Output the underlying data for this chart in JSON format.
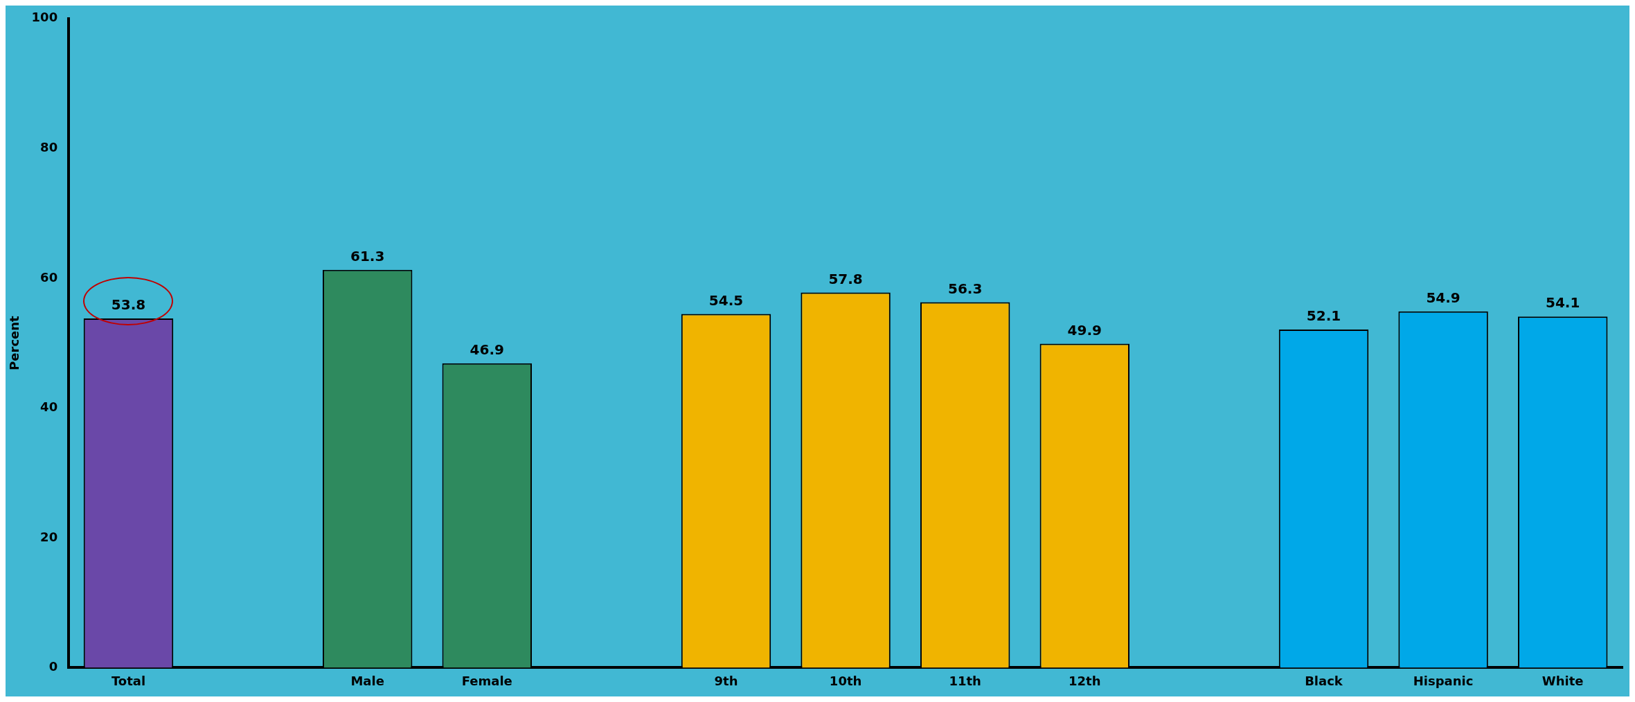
{
  "chart_data": {
    "type": "bar",
    "ylabel": "Percent",
    "categories": [
      "Total",
      null,
      "Male",
      "Female",
      null,
      "9th",
      "10th",
      "11th",
      "12th",
      null,
      "Black",
      "Hispanic",
      "White"
    ],
    "values": [
      53.8,
      null,
      61.3,
      46.9,
      null,
      54.5,
      57.8,
      56.3,
      49.9,
      null,
      52.1,
      54.9,
      54.1
    ],
    "colors": [
      "#6a48a8",
      null,
      "#2e8a5e",
      "#2e8a5e",
      null,
      "#f0b400",
      "#f0b400",
      "#f0b400",
      "#f0b400",
      null,
      "#00a8e8",
      "#00a8e8",
      "#00a8e8"
    ],
    "ylim": [
      0,
      100
    ],
    "yticks": [
      0,
      20,
      40,
      60,
      80,
      100
    ],
    "grid": false,
    "legend": false,
    "data_labels": true
  }
}
